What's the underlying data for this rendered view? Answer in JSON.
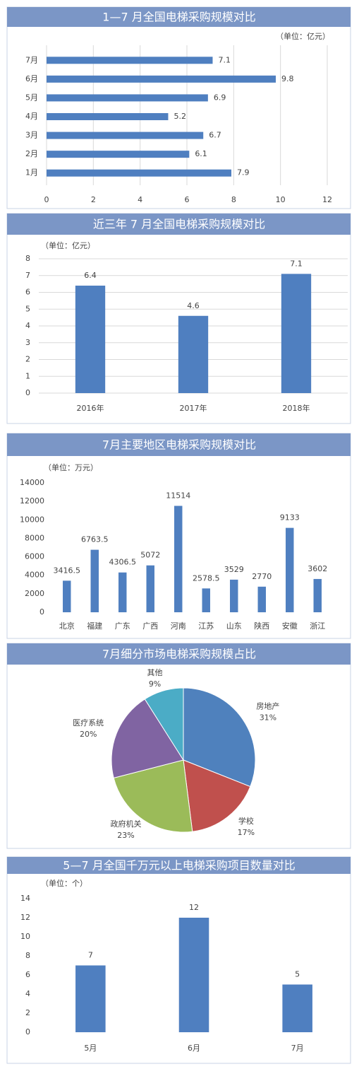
{
  "chart_data": [
    {
      "type": "bar",
      "horizontal": true,
      "title": "1—7 月全国电梯采购规模对比",
      "unit": "（单位：亿元）",
      "categories": [
        "7月",
        "6月",
        "5月",
        "4月",
        "3月",
        "2月",
        "1月"
      ],
      "values": [
        7.1,
        9.8,
        6.9,
        5.2,
        6.7,
        6.1,
        7.9
      ],
      "color": "#4f7fc0",
      "xlim": [
        0,
        12
      ],
      "xticks": [
        0,
        2,
        4,
        6,
        8,
        10,
        12
      ],
      "grid": true
    },
    {
      "type": "bar",
      "title": "近三年 7 月全国电梯采购规模对比",
      "unit": "（单位：亿元）",
      "categories": [
        "2016年",
        "2017年",
        "2018年"
      ],
      "values": [
        6.4,
        4.6,
        7.1
      ],
      "color": "#4f7fc0",
      "ylim": [
        0,
        8
      ],
      "yticks": [
        0,
        1,
        2,
        3,
        4,
        5,
        6,
        7,
        8
      ],
      "grid": true
    },
    {
      "type": "bar",
      "title": "7月主要地区电梯采购规模对比",
      "unit": "（单位：万元）",
      "categories": [
        "北京",
        "福建",
        "广东",
        "广西",
        "河南",
        "江苏",
        "山东",
        "陕西",
        "安徽",
        "浙江"
      ],
      "values": [
        3416.5,
        6763.5,
        4306.5,
        5072,
        11514,
        2578.5,
        3529,
        2770,
        9133,
        3602
      ],
      "color": "#4f7fc0",
      "ylim": [
        0,
        14000
      ],
      "yticks": [
        0,
        2000,
        4000,
        6000,
        8000,
        10000,
        12000,
        14000
      ],
      "grid": false
    },
    {
      "type": "pie",
      "title": "7月细分市场电梯采购规模占比",
      "categories": [
        "房地产",
        "学校",
        "政府机关",
        "医疗系统",
        "其他"
      ],
      "values": [
        31,
        17,
        23,
        20,
        9
      ],
      "value_labels": [
        "31%",
        "17%",
        "23%",
        "20%",
        "9%"
      ],
      "colors": [
        "#4f81bd",
        "#c0504d",
        "#9bbb59",
        "#8064a2",
        "#4bacc6"
      ]
    },
    {
      "type": "bar",
      "title": "5—7 月全国千万元以上电梯采购项目数量对比",
      "unit": "（单位：个）",
      "categories": [
        "5月",
        "6月",
        "7月"
      ],
      "values": [
        7,
        12,
        5
      ],
      "color": "#4f7fc0",
      "ylim": [
        0,
        14
      ],
      "yticks": [
        0,
        2,
        4,
        6,
        8,
        10,
        12,
        14
      ],
      "grid": false
    }
  ]
}
